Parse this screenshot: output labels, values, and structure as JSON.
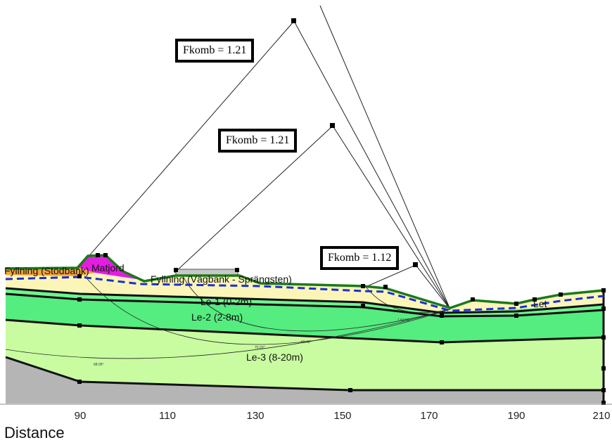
{
  "factors": {
    "fk1": "Fkomb = 1.21",
    "fk2": "Fkomb = 1.21",
    "fk3": "Fkomb = 1.12"
  },
  "layers": {
    "fill_left": "Fyllning (Stödbank)",
    "topsoil": "Matjord",
    "road_fill": "Fyllning (Vägbank - Sprängsten)",
    "clay1": "Le-1 (0-2m)",
    "clay2": "Le-2 (2-8m)",
    "clay3": "Le-3 (8-20m)",
    "right": "Let"
  },
  "slip_labels": {
    "s1": "1.53.56°",
    "s2": "69.43°",
    "s3": "70.03°",
    "s4": "68.05°"
  },
  "axis": {
    "title": "Distance",
    "ticks": [
      "90",
      "110",
      "130",
      "150",
      "170",
      "190",
      "210"
    ]
  },
  "colors": {
    "fill_left": "#f2a33a",
    "topsoil": "#e21ee0",
    "road_fill": "#fbf6b8",
    "clay1": "#6ef58f",
    "clay2": "#55ec80",
    "clay3": "#c9fca0",
    "bedrock": "#b5b5b5",
    "ground_line": "#1a7a1a",
    "water_table": "#1b2fd6"
  }
}
